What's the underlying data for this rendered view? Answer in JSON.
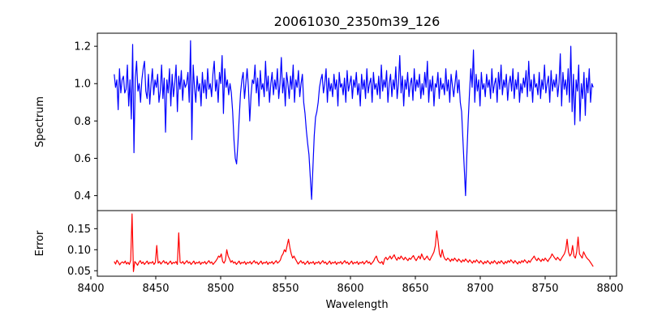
{
  "chart_data": {
    "type": "line",
    "title": "20061030_2350m39_126",
    "xlabel": "Wavelength",
    "xlim": [
      8405,
      8805
    ],
    "xticks": [
      8400,
      8450,
      8500,
      8550,
      8600,
      8650,
      8700,
      8750,
      8800
    ],
    "x_start": 8418,
    "x_end": 8787,
    "grid": false,
    "panels": [
      {
        "name": "spectrum",
        "ylabel": "Spectrum",
        "ylim": [
          0.32,
          1.27
        ],
        "yticks": [
          "0.4",
          "0.6",
          "0.8",
          "1.0",
          "1.2"
        ],
        "series": [
          {
            "color": "#0000ff",
            "values": [
              1.05,
              0.98,
              1.02,
              0.86,
              1.08,
              0.95,
              1.02,
              1.04,
              0.95,
              0.97,
              1.1,
              0.88,
              1.02,
              0.81,
              1.21,
              0.63,
              1.03,
              1.12,
              0.96,
              1.0,
              0.9,
              1.02,
              1.08,
              1.12,
              0.96,
              0.92,
              1.05,
              0.89,
              1.0,
              1.08,
              0.94,
              1.02,
              0.98,
              1.05,
              0.9,
              0.96,
              1.1,
              0.92,
              1.03,
              0.74,
              1.02,
              0.95,
              1.08,
              0.88,
              1.05,
              0.93,
              1.0,
              1.1,
              0.85,
              1.04,
              0.97,
              1.07,
              0.91,
              1.02,
              0.98,
              1.0,
              1.06,
              0.9,
              1.23,
              0.7,
              1.1,
              0.98,
              0.9,
              1.04,
              0.96,
              1.0,
              0.88,
              1.06,
              0.95,
              1.02,
              0.92,
              1.08,
              0.97,
              1.0,
              0.93,
              1.05,
              1.12,
              0.96,
              1.02,
              0.9,
              1.06,
              1.0,
              1.15,
              0.84,
              1.08,
              0.98,
              1.02,
              0.94,
              1.0,
              0.95,
              0.85,
              0.7,
              0.6,
              0.57,
              0.68,
              0.82,
              0.95,
              1.02,
              1.06,
              0.92,
              1.0,
              1.08,
              0.98,
              0.8,
              0.94,
              1.02,
              1.0,
              1.1,
              0.95,
              1.03,
              0.88,
              1.07,
              0.97,
              1.0,
              0.93,
              1.12,
              0.96,
              1.04,
              0.9,
              1.0,
              1.06,
              0.94,
              1.02,
              0.97,
              1.08,
              0.92,
              1.0,
              1.14,
              0.95,
              1.03,
              0.88,
              1.06,
              1.0,
              0.92,
              1.04,
              0.97,
              1.1,
              0.9,
              1.02,
              0.98,
              1.07,
              0.93,
              1.0,
              1.05,
              0.9,
              0.84,
              0.75,
              0.68,
              0.62,
              0.5,
              0.38,
              0.55,
              0.72,
              0.82,
              0.85,
              0.9,
              0.98,
              1.02,
              1.05,
              0.95,
              1.0,
              1.08,
              0.9,
              1.03,
              0.96,
              1.0,
              0.93,
              1.05,
              0.97,
              1.02,
              0.88,
              1.06,
              0.98,
              1.0,
              0.94,
              1.03,
              0.9,
              1.07,
              0.96,
              1.0,
              1.04,
              0.92,
              1.02,
              0.98,
              1.06,
              0.94,
              1.0,
              0.88,
              1.05,
              0.97,
              1.02,
              0.92,
              1.08,
              0.95,
              1.0,
              1.03,
              0.9,
              1.06,
              0.97,
              1.0,
              0.94,
              1.04,
              0.92,
              1.1,
              0.96,
              1.02,
              0.98,
              1.07,
              0.9,
              1.0,
              1.05,
              0.93,
              1.02,
              0.97,
              1.09,
              0.92,
              1.0,
              1.15,
              0.95,
              1.04,
              0.88,
              1.02,
              0.97,
              1.06,
              0.93,
              1.0,
              1.03,
              0.91,
              1.08,
              0.96,
              1.02,
              0.98,
              1.05,
              0.92,
              1.0,
              0.94,
              1.06,
              0.98,
              1.12,
              0.9,
              1.02,
              0.96,
              1.04,
              0.88,
              1.0,
              0.98,
              1.06,
              0.92,
              1.03,
              0.97,
              1.0,
              0.94,
              1.08,
              0.96,
              1.02,
              0.9,
              1.05,
              0.99,
              0.93,
              1.0,
              1.07,
              0.95,
              1.02,
              0.9,
              0.85,
              0.7,
              0.55,
              0.4,
              0.62,
              0.8,
              0.95,
              1.08,
              0.98,
              1.18,
              0.9,
              1.05,
              0.96,
              1.02,
              0.88,
              1.06,
              0.97,
              1.0,
              0.93,
              1.05,
              0.98,
              1.02,
              0.92,
              1.08,
              0.95,
              1.0,
              1.03,
              0.9,
              1.06,
              0.97,
              1.1,
              0.94,
              1.02,
              0.98,
              1.05,
              0.91,
              1.0,
              1.04,
              0.96,
              1.08,
              0.92,
              1.02,
              0.97,
              1.06,
              0.9,
              1.0,
              0.95,
              1.03,
              0.98,
              1.07,
              0.93,
              1.12,
              0.96,
              1.02,
              0.9,
              1.05,
              0.98,
              1.0,
              0.94,
              1.06,
              0.92,
              1.02,
              0.97,
              1.1,
              0.95,
              1.0,
              1.04,
              0.9,
              1.07,
              0.96,
              1.02,
              0.98,
              1.05,
              0.93,
              1.0,
              1.16,
              0.88,
              1.06,
              0.97,
              1.02,
              0.94,
              1.08,
              0.9,
              1.2,
              0.85,
              1.05,
              0.78,
              1.02,
              0.96,
              1.1,
              0.8,
              1.0,
              0.92,
              1.06,
              0.83,
              1.03,
              0.95,
              1.08,
              0.9,
              1.0,
              0.98
            ]
          }
        ]
      },
      {
        "name": "error",
        "ylabel": "Error",
        "ylim": [
          0.037,
          0.193
        ],
        "yticks": [
          "0.05",
          "0.10",
          "0.15"
        ],
        "series": [
          {
            "color": "#ff0000",
            "values": [
              0.072,
              0.066,
              0.075,
              0.07,
              0.064,
              0.069,
              0.071,
              0.068,
              0.073,
              0.066,
              0.07,
              0.065,
              0.075,
              0.185,
              0.048,
              0.072,
              0.068,
              0.063,
              0.07,
              0.074,
              0.067,
              0.071,
              0.065,
              0.069,
              0.073,
              0.066,
              0.07,
              0.068,
              0.072,
              0.065,
              0.07,
              0.11,
              0.068,
              0.072,
              0.066,
              0.07,
              0.074,
              0.068,
              0.071,
              0.065,
              0.069,
              0.073,
              0.066,
              0.07,
              0.068,
              0.072,
              0.065,
              0.14,
              0.07,
              0.068,
              0.072,
              0.066,
              0.07,
              0.074,
              0.068,
              0.071,
              0.065,
              0.069,
              0.073,
              0.066,
              0.07,
              0.068,
              0.072,
              0.065,
              0.07,
              0.068,
              0.072,
              0.066,
              0.07,
              0.074,
              0.068,
              0.071,
              0.065,
              0.069,
              0.073,
              0.078,
              0.085,
              0.082,
              0.09,
              0.072,
              0.068,
              0.075,
              0.1,
              0.085,
              0.078,
              0.07,
              0.074,
              0.068,
              0.071,
              0.065,
              0.069,
              0.073,
              0.066,
              0.07,
              0.068,
              0.072,
              0.065,
              0.07,
              0.068,
              0.072,
              0.066,
              0.07,
              0.074,
              0.068,
              0.071,
              0.065,
              0.069,
              0.073,
              0.066,
              0.07,
              0.068,
              0.072,
              0.065,
              0.07,
              0.068,
              0.072,
              0.066,
              0.07,
              0.074,
              0.068,
              0.071,
              0.075,
              0.085,
              0.09,
              0.1,
              0.095,
              0.11,
              0.125,
              0.105,
              0.09,
              0.08,
              0.085,
              0.078,
              0.072,
              0.066,
              0.07,
              0.074,
              0.068,
              0.071,
              0.065,
              0.069,
              0.073,
              0.066,
              0.07,
              0.068,
              0.072,
              0.065,
              0.07,
              0.068,
              0.072,
              0.066,
              0.07,
              0.074,
              0.068,
              0.071,
              0.065,
              0.069,
              0.073,
              0.066,
              0.07,
              0.068,
              0.072,
              0.065,
              0.07,
              0.068,
              0.072,
              0.066,
              0.07,
              0.074,
              0.068,
              0.071,
              0.065,
              0.069,
              0.073,
              0.066,
              0.07,
              0.068,
              0.072,
              0.065,
              0.07,
              0.068,
              0.072,
              0.066,
              0.07,
              0.074,
              0.068,
              0.071,
              0.065,
              0.069,
              0.073,
              0.08,
              0.085,
              0.075,
              0.07,
              0.068,
              0.072,
              0.065,
              0.078,
              0.082,
              0.076,
              0.08,
              0.085,
              0.078,
              0.083,
              0.088,
              0.08,
              0.075,
              0.082,
              0.078,
              0.085,
              0.08,
              0.076,
              0.082,
              0.078,
              0.074,
              0.08,
              0.077,
              0.082,
              0.086,
              0.079,
              0.074,
              0.08,
              0.085,
              0.078,
              0.09,
              0.082,
              0.076,
              0.08,
              0.085,
              0.078,
              0.075,
              0.082,
              0.088,
              0.095,
              0.11,
              0.145,
              0.12,
              0.09,
              0.082,
              0.1,
              0.085,
              0.078,
              0.075,
              0.08,
              0.077,
              0.072,
              0.078,
              0.074,
              0.08,
              0.076,
              0.072,
              0.078,
              0.074,
              0.07,
              0.076,
              0.072,
              0.078,
              0.074,
              0.07,
              0.076,
              0.072,
              0.068,
              0.074,
              0.07,
              0.076,
              0.072,
              0.068,
              0.074,
              0.07,
              0.066,
              0.072,
              0.068,
              0.074,
              0.07,
              0.066,
              0.072,
              0.068,
              0.074,
              0.07,
              0.066,
              0.072,
              0.068,
              0.074,
              0.07,
              0.066,
              0.072,
              0.068,
              0.074,
              0.07,
              0.076,
              0.072,
              0.068,
              0.074,
              0.07,
              0.066,
              0.072,
              0.068,
              0.074,
              0.07,
              0.076,
              0.072,
              0.068,
              0.074,
              0.07,
              0.076,
              0.08,
              0.085,
              0.078,
              0.074,
              0.08,
              0.076,
              0.072,
              0.078,
              0.074,
              0.08,
              0.076,
              0.072,
              0.078,
              0.082,
              0.09,
              0.085,
              0.08,
              0.076,
              0.082,
              0.078,
              0.074,
              0.08,
              0.085,
              0.09,
              0.1,
              0.125,
              0.095,
              0.085,
              0.09,
              0.11,
              0.085,
              0.08,
              0.095,
              0.13,
              0.09,
              0.085,
              0.08,
              0.095,
              0.088,
              0.082,
              0.078,
              0.075,
              0.07,
              0.065,
              0.06
            ]
          }
        ]
      }
    ]
  }
}
